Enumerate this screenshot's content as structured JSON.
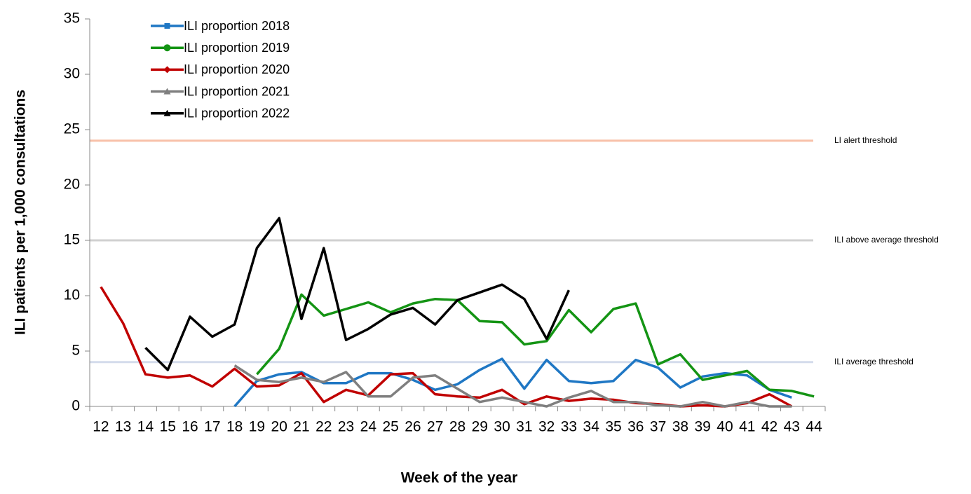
{
  "chart_data": {
    "type": "line",
    "x_label": "Week of the year",
    "y_label": "ILI patients per 1,000 consultations",
    "categories": [
      "12",
      "13",
      "14",
      "15",
      "16",
      "17",
      "18",
      "19",
      "20",
      "21",
      "22",
      "23",
      "24",
      "25",
      "26",
      "27",
      "28",
      "29",
      "30",
      "31",
      "32",
      "33",
      "34",
      "35",
      "36",
      "37",
      "38",
      "39",
      "40",
      "41",
      "42",
      "43",
      "44"
    ],
    "ylim": [
      0,
      35
    ],
    "yticks": [
      0,
      5,
      10,
      15,
      20,
      25,
      30,
      35
    ],
    "legend": "upper left",
    "series": [
      {
        "name": "ILI proportion 2018",
        "color": "#1f77c4",
        "marker": "square",
        "values": [
          null,
          null,
          null,
          null,
          null,
          null,
          0,
          2.3,
          2.9,
          3.1,
          2.1,
          2.1,
          3.0,
          3.0,
          2.4,
          1.5,
          2.0,
          3.3,
          4.3,
          1.6,
          4.2,
          2.3,
          2.1,
          2.3,
          4.2,
          3.5,
          1.7,
          2.7,
          3.0,
          2.8,
          1.5,
          0.8,
          null
        ]
      },
      {
        "name": "ILI proportion 2019",
        "color": "#149414",
        "marker": "circle",
        "values": [
          null,
          null,
          null,
          null,
          null,
          null,
          null,
          2.9,
          5.2,
          10.1,
          8.2,
          8.8,
          9.4,
          8.5,
          9.3,
          9.7,
          9.6,
          7.7,
          7.6,
          5.6,
          5.9,
          8.7,
          6.7,
          8.8,
          9.3,
          3.8,
          4.7,
          2.4,
          2.8,
          3.2,
          1.5,
          1.4,
          0.9
        ]
      },
      {
        "name": "ILI proportion 2020",
        "color": "#c00000",
        "marker": "diamond",
        "values": [
          10.8,
          7.5,
          2.9,
          2.6,
          2.8,
          1.8,
          3.4,
          1.8,
          1.9,
          3.0,
          0.4,
          1.5,
          1.0,
          2.9,
          3.0,
          1.1,
          0.9,
          0.8,
          1.5,
          0.2,
          0.9,
          0.5,
          0.7,
          0.6,
          0.3,
          0.2,
          0.0,
          0.1,
          0.0,
          0.3,
          1.1,
          0.0,
          null
        ]
      },
      {
        "name": "ILI proportion 2021",
        "color": "#7f7f7f",
        "marker": "triangle",
        "values": [
          null,
          null,
          null,
          null,
          null,
          null,
          3.7,
          2.4,
          2.2,
          2.6,
          2.2,
          3.1,
          0.9,
          0.9,
          2.6,
          2.8,
          1.6,
          0.4,
          0.8,
          0.4,
          0.0,
          0.8,
          1.4,
          0.4,
          0.4,
          0.1,
          0.0,
          0.4,
          0.0,
          0.4,
          0.0,
          0.0,
          null
        ]
      },
      {
        "name": "ILI proportion 2022",
        "color": "#000000",
        "marker": "triangle",
        "values": [
          null,
          null,
          5.3,
          3.3,
          8.1,
          6.3,
          7.4,
          14.3,
          17.0,
          7.9,
          14.3,
          6.0,
          7.0,
          8.3,
          8.9,
          7.4,
          9.6,
          10.3,
          11.0,
          9.7,
          6.1,
          10.5,
          null,
          null,
          null,
          null,
          null,
          null,
          null,
          null,
          null,
          null,
          null
        ]
      }
    ],
    "thresholds": [
      {
        "label": "LI alert threshold",
        "value": 24,
        "color": "#f8c0a8"
      },
      {
        "label": "ILI above average threshold",
        "value": 15,
        "color": "#d0d0d0"
      },
      {
        "label": "ILI average threshold",
        "value": 4,
        "color": "#d4dcec"
      }
    ]
  }
}
